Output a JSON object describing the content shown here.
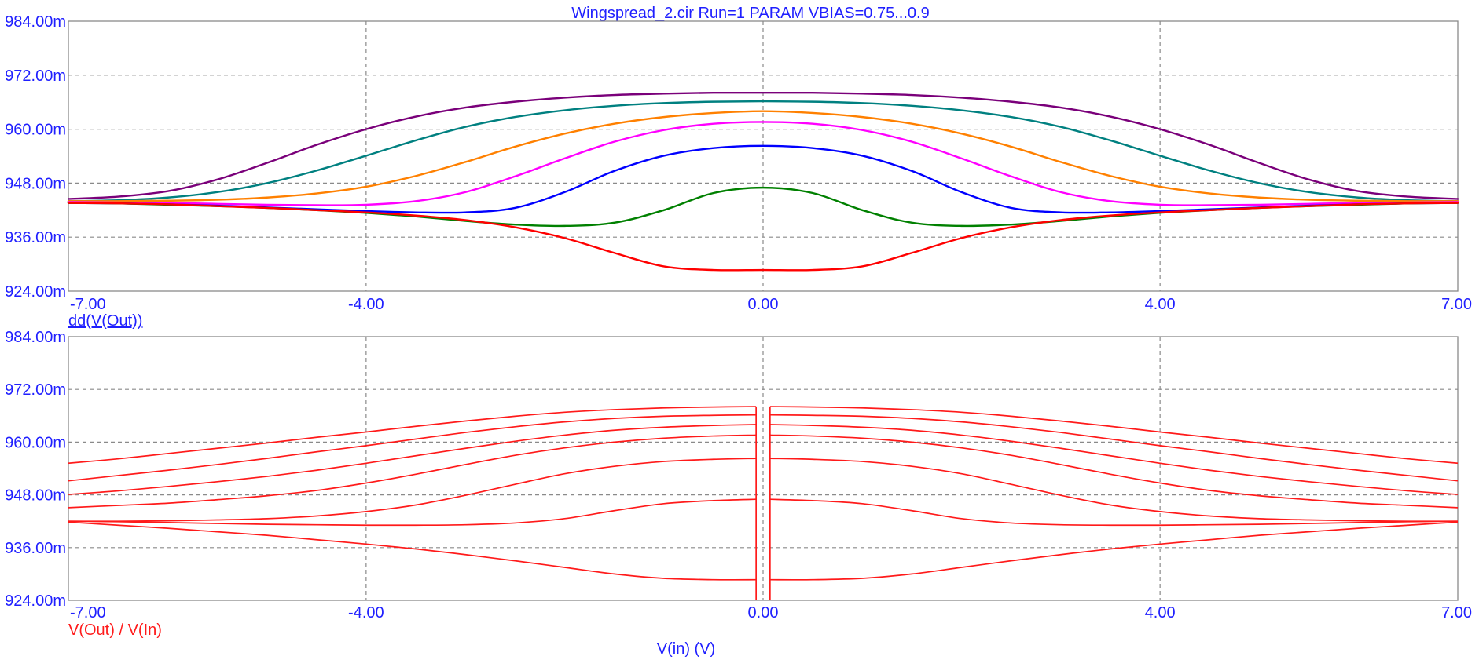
{
  "title": "Wingspread_2.cir Run=1 PARAM VBIAS=0.75...0.9",
  "xlabel": "V(in) (V)",
  "colors": {
    "text": "#1f1fff",
    "grid": "#8a8a8a",
    "ratio_curve": "#ff1a1a"
  },
  "chart_data": [
    {
      "type": "line",
      "trace_label": "dd(V(Out))",
      "xlim": [
        -7,
        7
      ],
      "ylim": [
        0.924,
        0.984
      ],
      "x_ticks": [
        "-7.00",
        "-4.00",
        "0.00",
        "4.00",
        "7.00"
      ],
      "x_tick_values": [
        -7,
        -4,
        0,
        4,
        7
      ],
      "y_ticks": [
        "984.00m",
        "972.00m",
        "960.00m",
        "948.00m",
        "936.00m",
        "924.00m"
      ],
      "y_tick_values": [
        0.984,
        0.972,
        0.96,
        0.948,
        0.936,
        0.924
      ],
      "grid": true,
      "x": [
        -7.0,
        -6.5,
        -6.0,
        -5.5,
        -5.0,
        -4.5,
        -4.0,
        -3.5,
        -3.0,
        -2.5,
        -2.0,
        -1.5,
        -1.0,
        -0.5,
        0.0,
        0.5,
        1.0,
        1.5,
        2.0,
        2.5,
        3.0,
        3.5,
        4.0,
        4.5,
        5.0,
        5.5,
        6.0,
        6.5,
        7.0
      ],
      "series": [
        {
          "color": "#7a007a",
          "values": [
            0.9445,
            0.945,
            0.9462,
            0.9488,
            0.9525,
            0.9565,
            0.96,
            0.9628,
            0.9648,
            0.9661,
            0.967,
            0.9676,
            0.9679,
            0.9681,
            0.9681,
            0.9681,
            0.9679,
            0.9676,
            0.967,
            0.9661,
            0.9648,
            0.9628,
            0.96,
            0.9565,
            0.9525,
            0.9488,
            0.9462,
            0.945,
            0.9445
          ]
        },
        {
          "color": "#008080",
          "values": [
            0.944,
            0.9442,
            0.9448,
            0.946,
            0.948,
            0.9508,
            0.9541,
            0.9575,
            0.9605,
            0.9627,
            0.9642,
            0.9652,
            0.9658,
            0.9661,
            0.9662,
            0.9661,
            0.9658,
            0.9652,
            0.9642,
            0.9627,
            0.9605,
            0.9575,
            0.9541,
            0.9508,
            0.948,
            0.946,
            0.9448,
            0.9442,
            0.944
          ]
        },
        {
          "color": "#ff8000",
          "values": [
            0.944,
            0.944,
            0.9441,
            0.9443,
            0.9448,
            0.9457,
            0.9472,
            0.9496,
            0.9527,
            0.9561,
            0.959,
            0.9612,
            0.9627,
            0.9636,
            0.964,
            0.9636,
            0.9627,
            0.9612,
            0.959,
            0.9561,
            0.9527,
            0.9496,
            0.9472,
            0.9457,
            0.9448,
            0.9443,
            0.9441,
            0.944,
            0.944
          ]
        },
        {
          "color": "#ff00ff",
          "values": [
            0.9438,
            0.9437,
            0.9436,
            0.9434,
            0.9432,
            0.9431,
            0.9432,
            0.944,
            0.946,
            0.9495,
            0.9535,
            0.9572,
            0.9598,
            0.9612,
            0.9616,
            0.9612,
            0.9598,
            0.9572,
            0.9535,
            0.9495,
            0.946,
            0.944,
            0.9432,
            0.9431,
            0.9432,
            0.9434,
            0.9436,
            0.9437,
            0.9438
          ]
        },
        {
          "color": "#0000ff",
          "values": [
            0.9436,
            0.9435,
            0.9433,
            0.943,
            0.9426,
            0.9422,
            0.9418,
            0.9415,
            0.9415,
            0.9425,
            0.946,
            0.9507,
            0.9541,
            0.9558,
            0.9563,
            0.9558,
            0.9541,
            0.9507,
            0.946,
            0.9425,
            0.9415,
            0.9415,
            0.9418,
            0.9422,
            0.9426,
            0.943,
            0.9433,
            0.9435,
            0.9436
          ]
        },
        {
          "color": "#008000",
          "values": [
            0.9436,
            0.9435,
            0.9432,
            0.9429,
            0.9425,
            0.942,
            0.9414,
            0.9406,
            0.9396,
            0.9388,
            0.9385,
            0.9392,
            0.942,
            0.9458,
            0.947,
            0.9458,
            0.942,
            0.9392,
            0.9385,
            0.9388,
            0.9396,
            0.9406,
            0.9414,
            0.942,
            0.9425,
            0.9429,
            0.9432,
            0.9435,
            0.9436
          ]
        },
        {
          "color": "#ff0000",
          "values": [
            0.9436,
            0.9435,
            0.9433,
            0.9429,
            0.9425,
            0.942,
            0.9415,
            0.9408,
            0.9398,
            0.9382,
            0.9358,
            0.9325,
            0.9295,
            0.9287,
            0.9287,
            0.9287,
            0.9295,
            0.9325,
            0.9358,
            0.9382,
            0.9398,
            0.9408,
            0.9415,
            0.942,
            0.9425,
            0.9429,
            0.9433,
            0.9435,
            0.9436
          ]
        }
      ]
    },
    {
      "type": "line",
      "trace_label": "V(Out) / V(In)",
      "xlim": [
        -7,
        7
      ],
      "ylim": [
        0.924,
        0.984
      ],
      "x_ticks": [
        "-7.00",
        "-4.00",
        "0.00",
        "4.00",
        "7.00"
      ],
      "x_tick_values": [
        -7,
        -4,
        0,
        4,
        7
      ],
      "y_ticks": [
        "984.00m",
        "972.00m",
        "960.00m",
        "948.00m",
        "936.00m",
        "924.00m"
      ],
      "y_tick_values": [
        0.984,
        0.972,
        0.96,
        0.948,
        0.936,
        0.924
      ],
      "grid": true,
      "x": [
        0.07,
        0.5,
        1.0,
        1.5,
        2.0,
        2.5,
        3.0,
        3.5,
        4.0,
        4.5,
        5.0,
        5.5,
        6.0,
        6.5,
        7.0
      ],
      "symmetric_about_zero": true,
      "series": [
        {
          "color": "#ff1a1a",
          "values": [
            0.9681,
            0.968,
            0.9678,
            0.9674,
            0.9668,
            0.9659,
            0.9648,
            0.9636,
            0.9623,
            0.9611,
            0.9598,
            0.9586,
            0.9574,
            0.9562,
            0.9552
          ]
        },
        {
          "color": "#ff1a1a",
          "values": [
            0.9662,
            0.9661,
            0.9659,
            0.9654,
            0.9646,
            0.9635,
            0.9622,
            0.9607,
            0.9592,
            0.9578,
            0.9563,
            0.9549,
            0.9536,
            0.9524,
            0.9512
          ]
        },
        {
          "color": "#ff1a1a",
          "values": [
            0.964,
            0.9638,
            0.9634,
            0.9627,
            0.9616,
            0.9602,
            0.9586,
            0.9569,
            0.9552,
            0.9536,
            0.9522,
            0.951,
            0.9499,
            0.9489,
            0.9481
          ]
        },
        {
          "color": "#ff1a1a",
          "values": [
            0.9616,
            0.9614,
            0.9609,
            0.96,
            0.9587,
            0.957,
            0.9549,
            0.9527,
            0.9507,
            0.949,
            0.9478,
            0.9469,
            0.9461,
            0.9456,
            0.9451
          ]
        },
        {
          "color": "#ff1a1a",
          "values": [
            0.9563,
            0.9561,
            0.9556,
            0.9545,
            0.9528,
            0.9504,
            0.9479,
            0.9457,
            0.9442,
            0.9432,
            0.9426,
            0.9423,
            0.9421,
            0.942,
            0.942
          ]
        },
        {
          "color": "#ff1a1a",
          "values": [
            0.947,
            0.9467,
            0.946,
            0.9444,
            0.9426,
            0.9416,
            0.9412,
            0.9411,
            0.9411,
            0.9412,
            0.9413,
            0.9415,
            0.9417,
            0.9419,
            0.942
          ]
        },
        {
          "color": "#ff1a1a",
          "values": [
            0.9287,
            0.9287,
            0.929,
            0.93,
            0.9315,
            0.933,
            0.9344,
            0.9357,
            0.9368,
            0.9378,
            0.9388,
            0.9396,
            0.9404,
            0.9411,
            0.9418
          ]
        }
      ]
    }
  ]
}
